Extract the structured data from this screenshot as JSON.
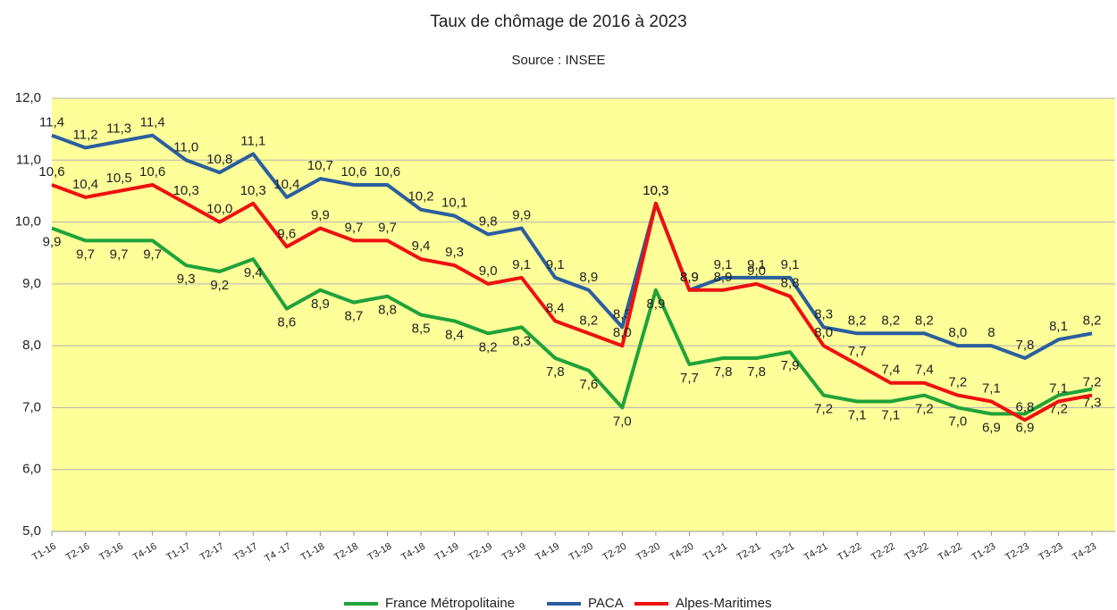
{
  "chart_data": {
    "type": "line",
    "title": "Taux de chômage de 2016 à 2023",
    "subtitle": "Source : INSEE",
    "categories": [
      "T1-16",
      "T2-16",
      "T3-16",
      "T4-16",
      "T1-17",
      "T2-17",
      "T3-17",
      "T4 -17",
      "T1-18",
      "T2-18",
      "T3-18",
      "T4-18",
      "T1-19",
      "T2-19",
      "T3-19",
      "T4-19",
      "T1-20",
      "T2-20",
      "T3-20",
      "T4-20",
      "T1-21",
      "T2-21",
      "T3-21",
      "T4-21",
      "T1-22",
      "T2-22",
      "T3-22",
      "T4-22",
      "T1-23",
      "T2-23",
      "T3-23",
      "T4-23"
    ],
    "series": [
      {
        "name": "France Métropolitaine",
        "color": "#1fa33a",
        "values": [
          9.9,
          9.7,
          9.7,
          9.7,
          9.3,
          9.2,
          9.4,
          8.6,
          8.9,
          8.7,
          8.8,
          8.5,
          8.4,
          8.2,
          8.3,
          7.8,
          7.6,
          7.0,
          8.9,
          7.7,
          7.8,
          7.8,
          7.9,
          7.2,
          7.1,
          7.1,
          7.2,
          7.0,
          6.9,
          6.9,
          7.2,
          7.3
        ],
        "value_labels": [
          "9,9",
          "9,7",
          "9,7",
          "9,7",
          "9,3",
          "9,2",
          "9,4",
          "8,6",
          "8,9",
          "8,7",
          "8,8",
          "8,5",
          "8,4",
          "8,2",
          "8,3",
          "7,8",
          "7,6",
          "7,0",
          "8,9",
          "7,7",
          "7,8",
          "7,8",
          "7,9",
          "7,2",
          "7,1",
          "7,1",
          "7,2",
          "7,0",
          "6,9",
          "6,9",
          "7,2",
          "7,3"
        ]
      },
      {
        "name": "PACA",
        "color": "#2b5e9e",
        "values": [
          11.4,
          11.2,
          11.3,
          11.4,
          11.0,
          10.8,
          11.1,
          10.4,
          10.7,
          10.6,
          10.6,
          10.2,
          10.1,
          9.8,
          9.9,
          9.1,
          8.9,
          8.3,
          10.3,
          8.9,
          9.1,
          9.1,
          9.1,
          8.3,
          8.2,
          8.2,
          8.2,
          8.0,
          8,
          7.8,
          8.1,
          8.2
        ],
        "value_labels": [
          "11,4",
          "11,2",
          "11,3",
          "11,4",
          "11,0",
          "10,8",
          "11,1",
          "10,4",
          "10,7",
          "10,6",
          "10,6",
          "10,2",
          "10,1",
          "9,8",
          "9,9",
          "9,1",
          "8,9",
          "8,3",
          "10,3",
          "8,9",
          "9,1",
          "9,1",
          "9,1",
          "8,3",
          "8,2",
          "8,2",
          "8,2",
          "8,0",
          "8",
          "7,8",
          "8,1",
          "8,2"
        ]
      },
      {
        "name": "Alpes-Maritimes",
        "color": "#ee1010",
        "values": [
          10.6,
          10.4,
          10.5,
          10.6,
          10.3,
          10.0,
          10.3,
          9.6,
          9.9,
          9.7,
          9.7,
          9.4,
          9.3,
          9.0,
          9.1,
          8.4,
          8.2,
          8.0,
          10.3,
          8.9,
          8.9,
          9.0,
          8.8,
          8.0,
          7.7,
          7.4,
          7.4,
          7.2,
          7.1,
          6.8,
          7.1,
          7.2
        ],
        "value_labels": [
          "10,6",
          "10,4",
          "10,5",
          "10,6",
          "10,3",
          "10,0",
          "10,3",
          "9,6",
          "9,9",
          "9,7",
          "9,7",
          "9,4",
          "9,3",
          "9,0",
          "9,1",
          "8,4",
          "8,2",
          "8,0",
          "10,3",
          "8,9",
          "8,9",
          "9,0",
          "8,8",
          "8,0",
          "7,7",
          "7,4",
          "7,4",
          "7,2",
          "7,1",
          "6,8",
          "7,1",
          "7,2"
        ]
      }
    ],
    "ylim": [
      5,
      12
    ],
    "yticks": [
      {
        "value": 5,
        "label": "5,0"
      },
      {
        "value": 6,
        "label": "6,0"
      },
      {
        "value": 7,
        "label": "7,0"
      },
      {
        "value": 8,
        "label": "8,0"
      },
      {
        "value": 9,
        "label": "9,0"
      },
      {
        "value": 10,
        "label": "10,0"
      },
      {
        "value": 11,
        "label": "11,0"
      },
      {
        "value": 12,
        "label": "12,0"
      }
    ],
    "grid": true,
    "legend": "bottom"
  }
}
